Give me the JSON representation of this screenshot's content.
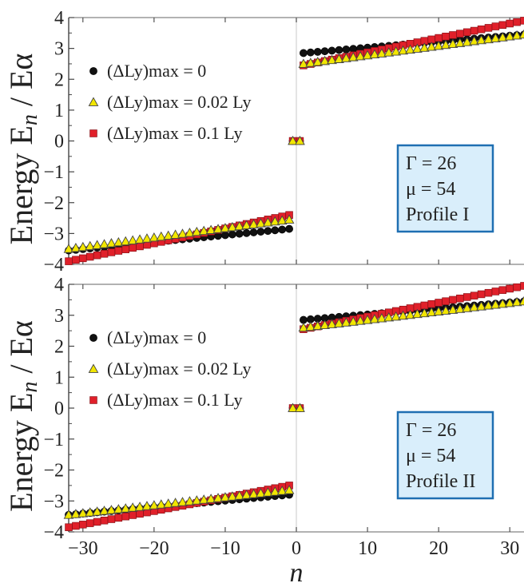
{
  "chart_data": [
    {
      "type": "scatter",
      "panel": "top",
      "ylabel_prefix": "Energy  E",
      "ylabel_sub": "n",
      "ylabel_suffix": " / Eα",
      "xlim": [
        -32,
        32
      ],
      "ylim": [
        -4,
        4
      ],
      "yticks": [
        "−4",
        "−3",
        "−2",
        "−1",
        "0",
        "1",
        "2",
        "3",
        "4"
      ],
      "legend": [
        "(ΔLy)max = 0",
        "(ΔLy)max = 0.02 Ly",
        "(ΔLy)max = 0.1 Ly"
      ],
      "info_box": [
        "Γ = 26",
        "μ = 54",
        "Profile I"
      ],
      "series": [
        {
          "name": "(ΔLy)max = 0",
          "marker": "circle",
          "color": "#111111",
          "neg": {
            "from": -3.55,
            "to": -2.85
          },
          "pos": {
            "from": 2.85,
            "to": 3.45
          }
        },
        {
          "name": "(ΔLy)max = 0.02 Ly",
          "marker": "triangle",
          "color": "#f2e600",
          "neg": {
            "from": -3.5,
            "to": -2.55
          },
          "pos": {
            "from": 2.5,
            "to": 3.45
          }
        },
        {
          "name": "(ΔLy)max = 0.1 Ly",
          "marker": "square",
          "color": "#e0202a",
          "neg": {
            "from": -3.9,
            "to": -2.4
          },
          "pos": {
            "from": 2.45,
            "to": 3.9
          }
        }
      ]
    },
    {
      "type": "scatter",
      "panel": "bottom",
      "ylabel_prefix": "Energy  E",
      "ylabel_sub": "n",
      "ylabel_suffix": " / Eα",
      "xlabel": "n",
      "xlim": [
        -32,
        32
      ],
      "ylim": [
        -4,
        4
      ],
      "yticks": [
        "−4",
        "−3",
        "−2",
        "−1",
        "0",
        "1",
        "2",
        "3",
        "4"
      ],
      "xticks": [
        {
          "v": -30,
          "t": "−30"
        },
        {
          "v": -20,
          "t": "−20"
        },
        {
          "v": -10,
          "t": "−10"
        },
        {
          "v": 0,
          "t": "0"
        },
        {
          "v": 10,
          "t": "10"
        },
        {
          "v": 20,
          "t": "20"
        },
        {
          "v": 30,
          "t": "30"
        }
      ],
      "legend": [
        "(ΔLy)max = 0",
        "(ΔLy)max = 0.02 Ly",
        "(ΔLy)max = 0.1 Ly"
      ],
      "info_box": [
        "Γ = 26",
        "μ = 54",
        "Profile II"
      ],
      "series": [
        {
          "name": "(ΔLy)max = 0",
          "marker": "circle",
          "color": "#111111",
          "neg": {
            "from": -3.45,
            "to": -2.8
          },
          "pos": {
            "from": 2.85,
            "to": 3.45
          }
        },
        {
          "name": "(ΔLy)max = 0.02 Ly",
          "marker": "triangle",
          "color": "#f2e600",
          "neg": {
            "from": -3.45,
            "to": -2.65
          },
          "pos": {
            "from": 2.6,
            "to": 3.45
          }
        },
        {
          "name": "(ΔLy)max = 0.1 Ly",
          "marker": "square",
          "color": "#e0202a",
          "neg": {
            "from": -3.85,
            "to": -2.5
          },
          "pos": {
            "from": 2.55,
            "to": 3.95
          }
        }
      ]
    }
  ]
}
